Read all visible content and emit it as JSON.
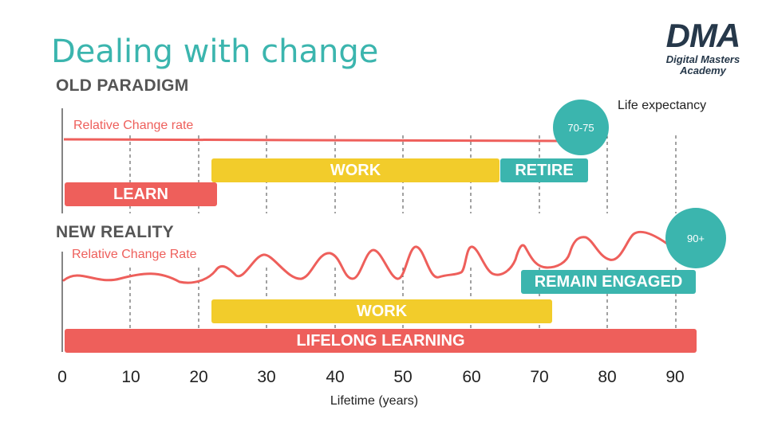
{
  "title": "Dealing with change",
  "logo": {
    "mark": "DMA",
    "line1": "Digital Masters",
    "line2": "Academy"
  },
  "old_paradigm": {
    "label": "OLD PARADIGM",
    "rate_label": "Relative Change rate",
    "life_expectancy_label": "Life expectancy",
    "life_expectancy_value": "70-75",
    "bars": {
      "learn": "LEARN",
      "work": "WORK",
      "retire": "RETIRE"
    }
  },
  "new_reality": {
    "label": "NEW REALITY",
    "rate_label": "Relative Change Rate",
    "life_expectancy_value": "90+",
    "bars": {
      "remain_engaged": "REMAIN ENGAGED",
      "work": "WORK",
      "lifelong_learning": "LIFELONG LEARNING"
    }
  },
  "x_axis": {
    "label": "Lifetime (years)",
    "ticks": [
      "0",
      "10",
      "20",
      "30",
      "40",
      "50",
      "60",
      "70",
      "80",
      "90"
    ]
  },
  "colors": {
    "teal": "#3bb5ae",
    "yellow": "#f2cc2b",
    "red": "#ee5f5b",
    "navy": "#26384a"
  }
}
